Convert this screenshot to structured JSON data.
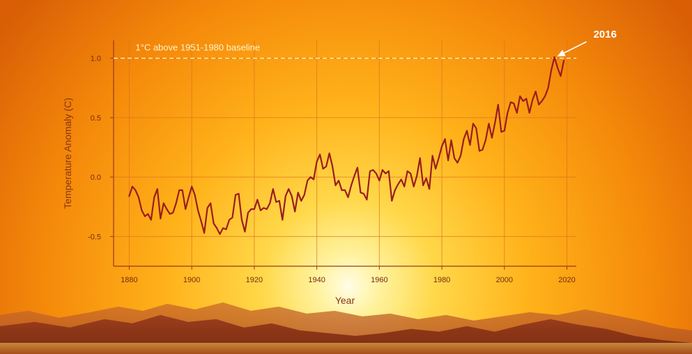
{
  "chart_data": {
    "type": "line",
    "xlabel": "Year",
    "ylabel": "Temperature Anomaly (C)",
    "xlim": [
      1875,
      2023
    ],
    "ylim": [
      -0.75,
      1.15
    ],
    "x_ticks": [
      1880,
      1900,
      1920,
      1940,
      1960,
      1980,
      2000,
      2020
    ],
    "y_ticks": [
      -0.5,
      0.0,
      0.5,
      1.0
    ],
    "y_tick_labels": [
      "-0.5",
      "0.0",
      "0.5",
      "1.0"
    ],
    "grid": true,
    "series": [
      {
        "color": "#9a1c1c",
        "x": [
          1880,
          1881,
          1882,
          1883,
          1884,
          1885,
          1886,
          1887,
          1888,
          1889,
          1890,
          1891,
          1892,
          1893,
          1894,
          1895,
          1896,
          1897,
          1898,
          1899,
          1900,
          1901,
          1902,
          1903,
          1904,
          1905,
          1906,
          1907,
          1908,
          1909,
          1910,
          1911,
          1912,
          1913,
          1914,
          1915,
          1916,
          1917,
          1918,
          1919,
          1920,
          1921,
          1922,
          1923,
          1924,
          1925,
          1926,
          1927,
          1928,
          1929,
          1930,
          1931,
          1932,
          1933,
          1934,
          1935,
          1936,
          1937,
          1938,
          1939,
          1940,
          1941,
          1942,
          1943,
          1944,
          1945,
          1946,
          1947,
          1948,
          1949,
          1950,
          1951,
          1952,
          1953,
          1954,
          1955,
          1956,
          1957,
          1958,
          1959,
          1960,
          1961,
          1962,
          1963,
          1964,
          1965,
          1966,
          1967,
          1968,
          1969,
          1970,
          1971,
          1972,
          1973,
          1974,
          1975,
          1976,
          1977,
          1978,
          1979,
          1980,
          1981,
          1982,
          1983,
          1984,
          1985,
          1986,
          1987,
          1988,
          1989,
          1990,
          1991,
          1992,
          1993,
          1994,
          1995,
          1996,
          1997,
          1998,
          1999,
          2000,
          2001,
          2002,
          2003,
          2004,
          2005,
          2006,
          2007,
          2008,
          2009,
          2010,
          2011,
          2012,
          2013,
          2014,
          2015,
          2016,
          2017,
          2018,
          2019
        ],
        "y": [
          -0.16,
          -0.08,
          -0.11,
          -0.17,
          -0.28,
          -0.33,
          -0.31,
          -0.36,
          -0.17,
          -0.1,
          -0.35,
          -0.22,
          -0.27,
          -0.31,
          -0.3,
          -0.22,
          -0.11,
          -0.11,
          -0.27,
          -0.17,
          -0.08,
          -0.15,
          -0.28,
          -0.37,
          -0.47,
          -0.26,
          -0.22,
          -0.39,
          -0.43,
          -0.48,
          -0.43,
          -0.44,
          -0.36,
          -0.34,
          -0.15,
          -0.14,
          -0.36,
          -0.46,
          -0.3,
          -0.27,
          -0.27,
          -0.19,
          -0.28,
          -0.26,
          -0.27,
          -0.22,
          -0.1,
          -0.21,
          -0.2,
          -0.36,
          -0.16,
          -0.1,
          -0.16,
          -0.29,
          -0.13,
          -0.2,
          -0.15,
          -0.03,
          0.0,
          -0.02,
          0.13,
          0.19,
          0.07,
          0.09,
          0.2,
          0.09,
          -0.07,
          -0.03,
          -0.11,
          -0.11,
          -0.17,
          -0.07,
          0.01,
          0.08,
          -0.13,
          -0.14,
          -0.19,
          0.05,
          0.06,
          0.03,
          -0.03,
          0.06,
          0.03,
          0.05,
          -0.2,
          -0.11,
          -0.06,
          -0.02,
          -0.08,
          0.05,
          0.03,
          -0.08,
          0.01,
          0.16,
          -0.07,
          -0.01,
          -0.1,
          0.18,
          0.07,
          0.16,
          0.26,
          0.32,
          0.14,
          0.31,
          0.16,
          0.12,
          0.18,
          0.32,
          0.39,
          0.27,
          0.45,
          0.41,
          0.22,
          0.23,
          0.31,
          0.45,
          0.33,
          0.46,
          0.61,
          0.38,
          0.39,
          0.54,
          0.63,
          0.62,
          0.54,
          0.68,
          0.64,
          0.66,
          0.54,
          0.65,
          0.72,
          0.61,
          0.64,
          0.68,
          0.75,
          0.9,
          1.01,
          0.92,
          0.85,
          0.98
        ]
      }
    ],
    "annotations": {
      "baseline_value": 1.0,
      "baseline_label": "1°C above 1951-1980 baseline",
      "callout_year": 2016,
      "callout_label": "2016"
    }
  },
  "colors": {
    "line": "#9a1c1c",
    "grid": "#e0701e",
    "axis": "#9a3a1a",
    "baseline": "#fff0c0",
    "callout": "#ffffff"
  }
}
